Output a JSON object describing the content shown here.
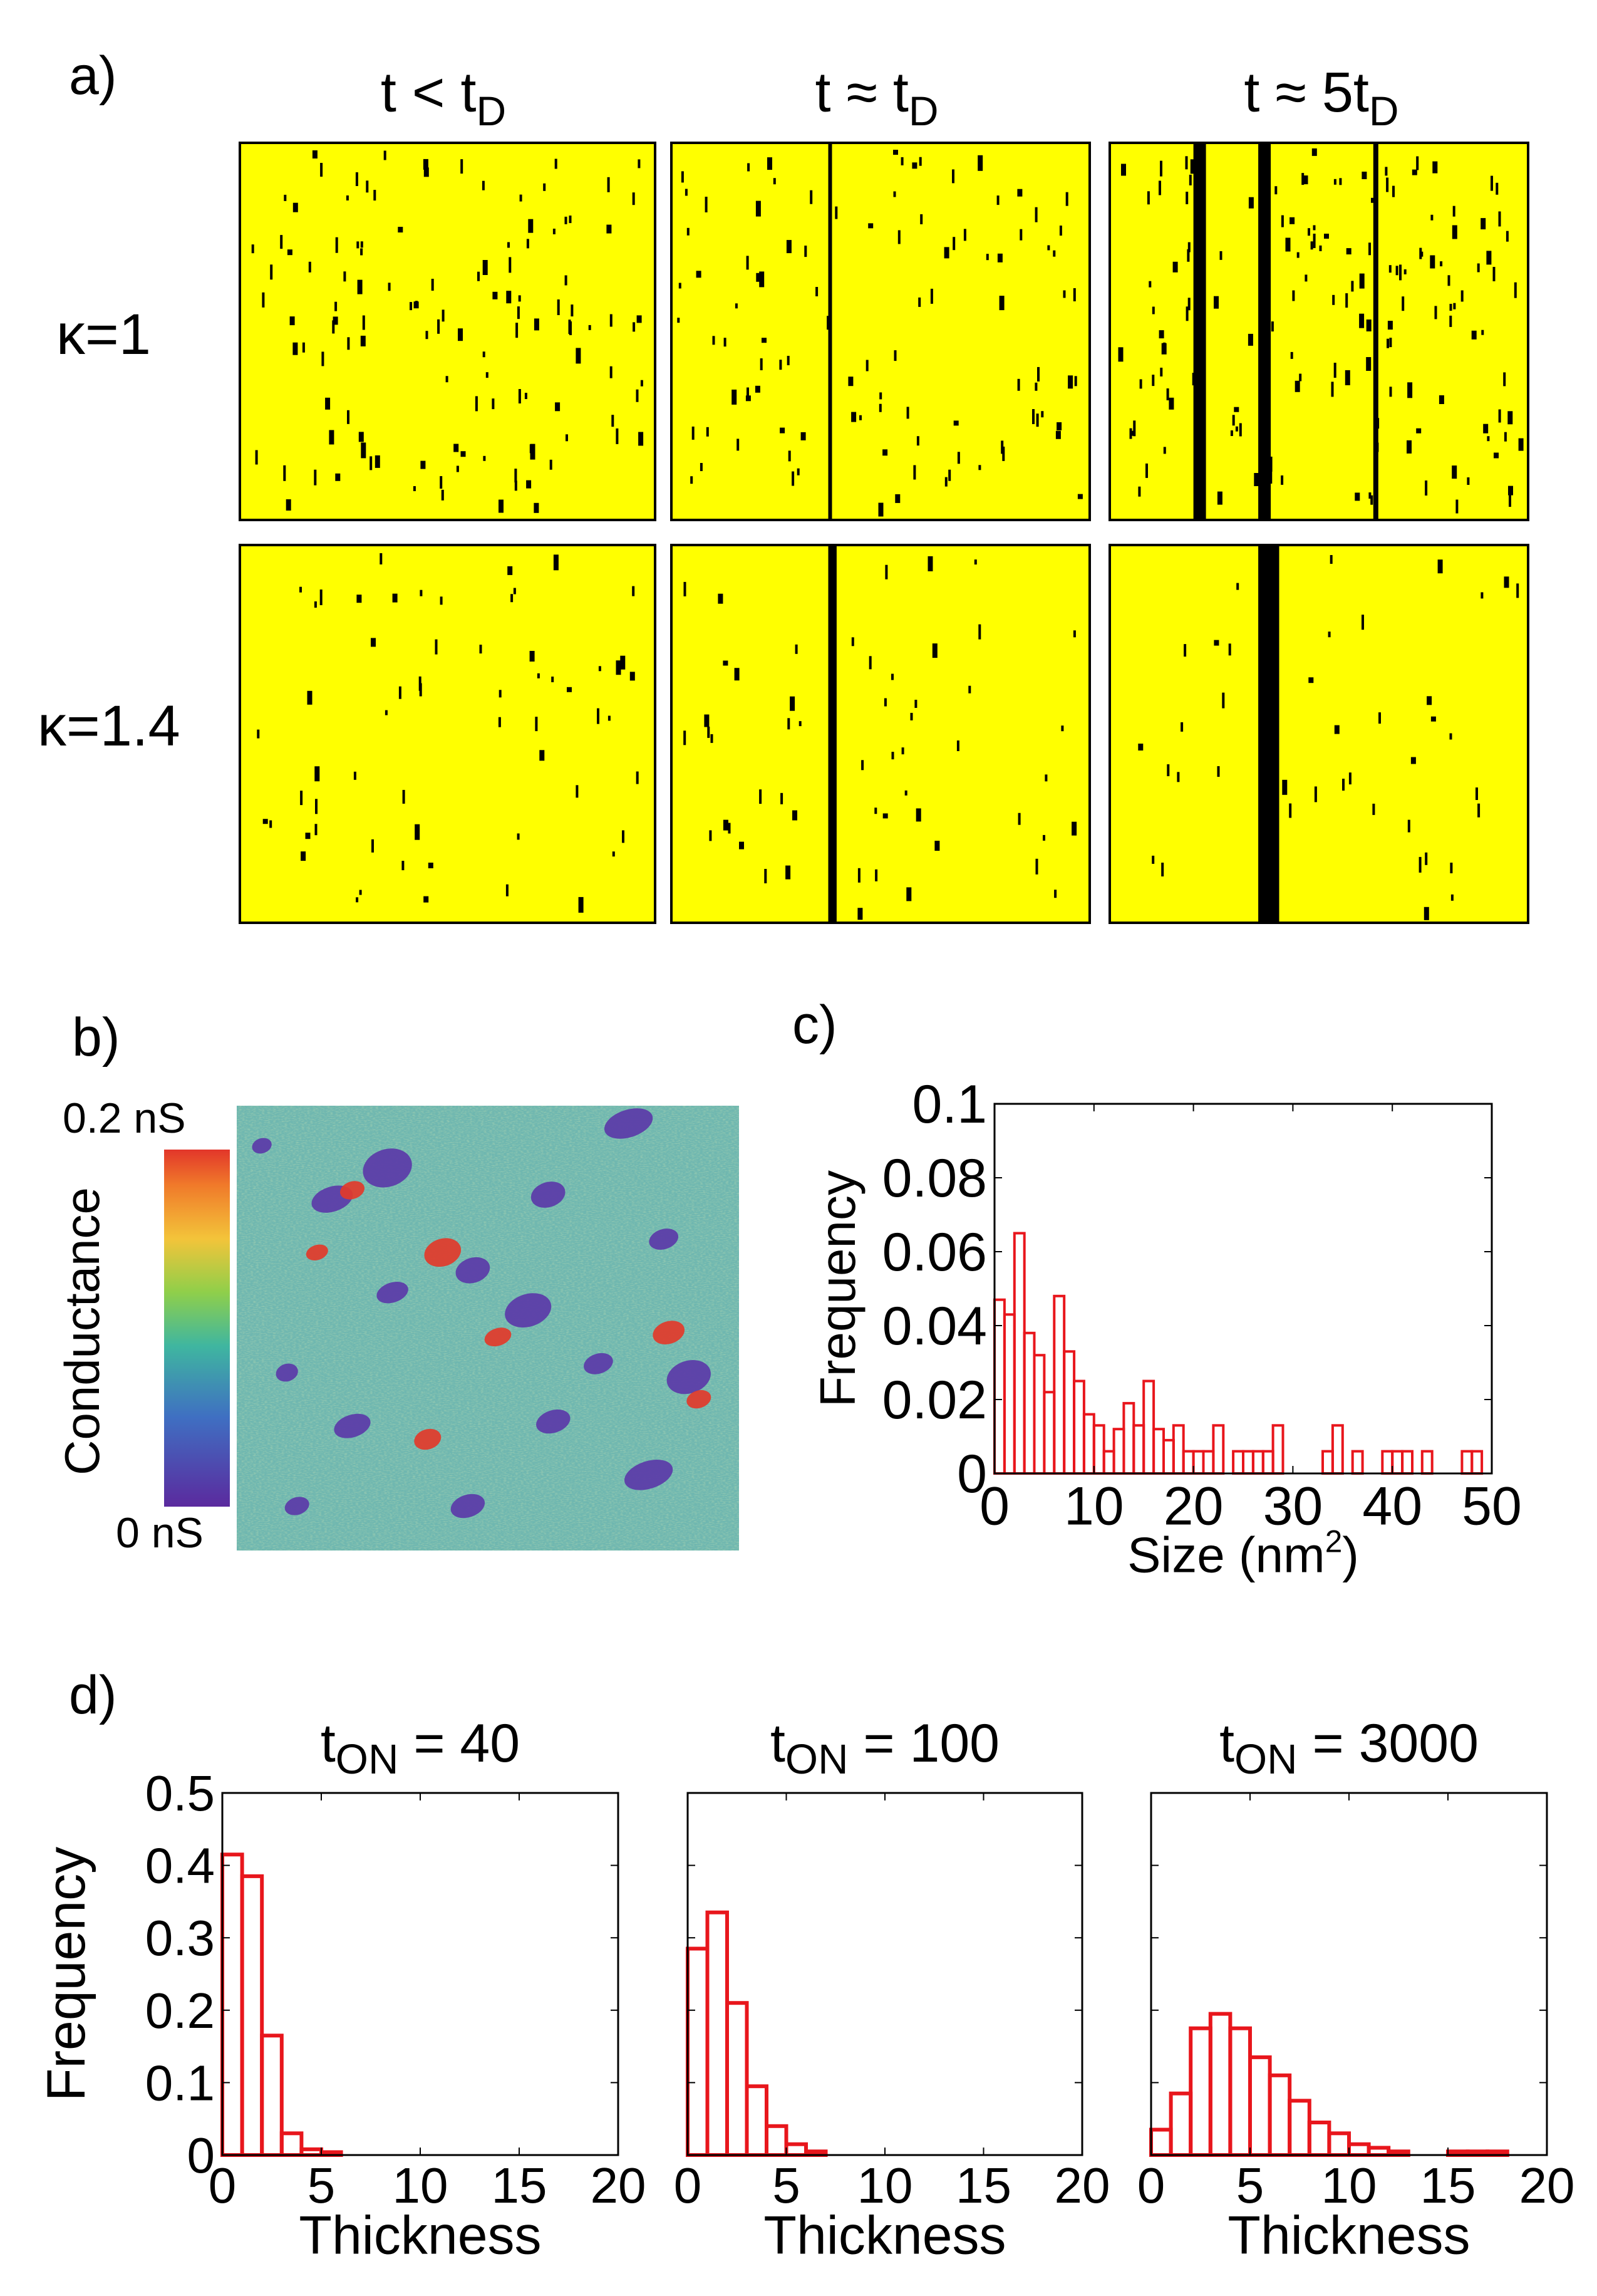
{
  "panel_labels": {
    "a": "a)",
    "b": "b)",
    "c": "c)",
    "d": "d)"
  },
  "panel_a": {
    "columns": [
      {
        "prefix": "t < t",
        "subscript": "D"
      },
      {
        "prefix": "t ≈ t",
        "subscript": "D"
      },
      {
        "prefix": "t ≈ 5t",
        "subscript": "D"
      }
    ],
    "rows": [
      {
        "label": "κ=1"
      },
      {
        "label": "κ=1.4"
      }
    ],
    "colors": {
      "background": "#ffff00",
      "defect": "#000000"
    }
  },
  "panel_b": {
    "colorbar_label": "Conductance",
    "max_label": "0.2 nS",
    "min_label": "0 nS",
    "colors": {
      "base": "#6cb8b4",
      "low": "#5b3aa8",
      "high": "#e23a2a"
    }
  },
  "chart_data": [
    {
      "id": "c",
      "type": "bar",
      "style": "outline",
      "color": "#e8161c",
      "xlabel": "Size (nm",
      "xlabel_sup": "2",
      "xlabel_end": ")",
      "ylabel": "Frequency",
      "xlim": [
        0,
        50
      ],
      "ylim": [
        0,
        0.1
      ],
      "xticks": [
        0,
        10,
        20,
        30,
        40,
        50
      ],
      "yticks": [
        0,
        0.02,
        0.04,
        0.06,
        0.08,
        0.1
      ],
      "ytick_labels": [
        "0",
        "0.02",
        "0.04",
        "0.06",
        "0.08",
        "0.1"
      ],
      "bin_width": 1,
      "x": [
        0,
        1,
        2,
        3,
        4,
        5,
        6,
        7,
        8,
        9,
        10,
        11,
        12,
        13,
        14,
        15,
        16,
        17,
        18,
        19,
        20,
        21,
        22,
        23,
        24,
        25,
        26,
        27,
        28,
        29,
        30,
        31,
        32,
        33,
        34,
        35,
        36,
        37,
        38,
        39,
        40,
        41,
        42,
        43,
        44,
        45,
        46,
        47,
        48,
        49
      ],
      "values": [
        0.047,
        0.043,
        0.065,
        0.038,
        0.032,
        0.022,
        0.048,
        0.033,
        0.025,
        0.016,
        0.013,
        0.006,
        0.012,
        0.019,
        0.013,
        0.025,
        0.012,
        0.009,
        0.013,
        0.006,
        0.006,
        0.006,
        0.013,
        0,
        0.006,
        0.006,
        0.006,
        0.006,
        0.013,
        0,
        0,
        0,
        0,
        0.006,
        0.013,
        0,
        0.006,
        0,
        0,
        0.006,
        0.006,
        0.006,
        0,
        0.006,
        0,
        0,
        0,
        0.006,
        0.006,
        0
      ]
    },
    {
      "id": "d1",
      "type": "bar",
      "style": "outline",
      "color": "#e8161c",
      "title_prefix": "t",
      "title_sub": "ON",
      "title_suffix": " = 40",
      "xlabel": "Thickness",
      "ylabel": "Frequency",
      "xlim": [
        0,
        20
      ],
      "ylim": [
        0,
        0.5
      ],
      "xticks": [
        0,
        5,
        10,
        15,
        20
      ],
      "yticks": [
        0,
        0.1,
        0.2,
        0.3,
        0.4,
        0.5
      ],
      "ytick_labels": [
        "0",
        "0.1",
        "0.2",
        "0.3",
        "0.4",
        "0.5"
      ],
      "bin_width": 1,
      "x": [
        0,
        1,
        2,
        3,
        4,
        5
      ],
      "values": [
        0.415,
        0.385,
        0.165,
        0.03,
        0.008,
        0.004
      ]
    },
    {
      "id": "d2",
      "type": "bar",
      "style": "outline",
      "color": "#e8161c",
      "title_prefix": "t",
      "title_sub": "ON",
      "title_suffix": " = 100",
      "xlabel": "Thickness",
      "ylabel": "",
      "xlim": [
        0,
        20
      ],
      "ylim": [
        0,
        0.5
      ],
      "xticks": [
        0,
        5,
        10,
        15,
        20
      ],
      "yticks": [
        0,
        0.1,
        0.2,
        0.3,
        0.4,
        0.5
      ],
      "ytick_labels": [],
      "bin_width": 1,
      "x": [
        0,
        1,
        2,
        3,
        4,
        5,
        6
      ],
      "values": [
        0.285,
        0.335,
        0.21,
        0.095,
        0.04,
        0.015,
        0.005
      ]
    },
    {
      "id": "d3",
      "type": "bar",
      "style": "outline",
      "color": "#e8161c",
      "title_prefix": "t",
      "title_sub": "ON",
      "title_suffix": " = 3000",
      "xlabel": "Thickness",
      "ylabel": "",
      "xlim": [
        0,
        20
      ],
      "ylim": [
        0,
        0.5
      ],
      "xticks": [
        0,
        5,
        10,
        15,
        20
      ],
      "yticks": [
        0,
        0.1,
        0.2,
        0.3,
        0.4,
        0.5
      ],
      "ytick_labels": [],
      "bin_width": 1,
      "x": [
        0,
        1,
        2,
        3,
        4,
        5,
        6,
        7,
        8,
        9,
        10,
        11,
        12,
        13,
        14,
        15,
        16,
        17
      ],
      "values": [
        0.035,
        0.085,
        0.175,
        0.195,
        0.175,
        0.135,
        0.11,
        0.075,
        0.045,
        0.03,
        0.015,
        0.01,
        0.005,
        0,
        0,
        0.005,
        0.005,
        0.005
      ]
    }
  ]
}
